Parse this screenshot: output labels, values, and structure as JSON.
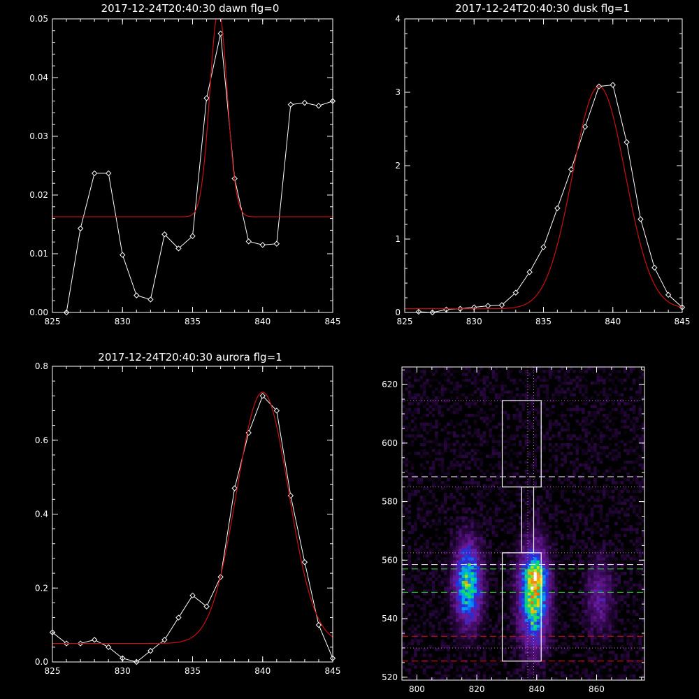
{
  "chart_data": [
    {
      "type": "line",
      "title": "2017-12-24T20:40:30 dawn flg=0",
      "xlim": [
        825,
        845
      ],
      "ylim": [
        0,
        0.05
      ],
      "xticks": [
        825,
        830,
        835,
        840,
        845
      ],
      "xtick_labels": [
        "825",
        "830",
        "835",
        "840",
        "845"
      ],
      "yticks": [
        0,
        0.01,
        0.02,
        0.03,
        0.04,
        0.05
      ],
      "ytick_labels": [
        "0.00",
        "0.01",
        "0.02",
        "0.03",
        "0.04",
        "0.05"
      ],
      "series": [
        {
          "kind": "data",
          "color": "#ffffff",
          "marker": "diamond",
          "x": [
            826,
            827,
            828,
            829,
            830,
            831,
            832,
            833,
            834,
            835,
            836,
            837,
            838,
            839,
            840,
            841,
            842,
            843,
            844,
            845
          ],
          "y": [
            0.0,
            0.0143,
            0.0237,
            0.0237,
            0.0098,
            0.0029,
            0.0022,
            0.0133,
            0.0109,
            0.013,
            0.0365,
            0.0475,
            0.0228,
            0.0121,
            0.0115,
            0.0117,
            0.0354,
            0.0357,
            0.0352,
            0.036
          ]
        },
        {
          "kind": "gaussian_fit",
          "color": "#cc1010",
          "baseline": 0.0163,
          "amplitude": 0.0352,
          "center": 836.85,
          "sigma": 0.62
        }
      ]
    },
    {
      "type": "line",
      "title": "2017-12-24T20:40:30 dusk flg=1",
      "xlim": [
        825,
        845
      ],
      "ylim": [
        0,
        4
      ],
      "xticks": [
        825,
        830,
        835,
        840,
        845
      ],
      "xtick_labels": [
        "825",
        "830",
        "835",
        "840",
        "845"
      ],
      "yticks": [
        0,
        1,
        2,
        3,
        4
      ],
      "ytick_labels": [
        "0",
        "1",
        "2",
        "3",
        "4"
      ],
      "series": [
        {
          "kind": "data",
          "color": "#ffffff",
          "marker": "diamond",
          "x": [
            826,
            827,
            828,
            829,
            830,
            831,
            832,
            833,
            834,
            835,
            836,
            837,
            838,
            839,
            840,
            841,
            842,
            843,
            844,
            845
          ],
          "y": [
            0.01,
            0.0,
            0.04,
            0.05,
            0.07,
            0.09,
            0.1,
            0.27,
            0.55,
            0.89,
            1.42,
            1.95,
            2.53,
            3.08,
            3.1,
            2.32,
            1.27,
            0.61,
            0.24,
            0.07
          ]
        },
        {
          "kind": "gaussian_fit",
          "color": "#cc1010",
          "baseline": 0.05,
          "amplitude": 3.03,
          "center": 839.0,
          "sigma": 1.9
        }
      ]
    },
    {
      "type": "line",
      "title": "2017-12-24T20:40:30 aurora flg=1",
      "xlim": [
        825,
        845
      ],
      "ylim": [
        0,
        0.8
      ],
      "xticks": [
        825,
        830,
        835,
        840,
        845
      ],
      "xtick_labels": [
        "825",
        "830",
        "835",
        "840",
        "845"
      ],
      "yticks": [
        0,
        0.2,
        0.4,
        0.6,
        0.8
      ],
      "ytick_labels": [
        "0.0",
        "0.2",
        "0.4",
        "0.6",
        "0.8"
      ],
      "series": [
        {
          "kind": "data",
          "color": "#ffffff",
          "marker": "diamond",
          "x": [
            825,
            826,
            827,
            828,
            829,
            830,
            831,
            832,
            833,
            834,
            835,
            836,
            837,
            838,
            839,
            840,
            841,
            842,
            843,
            844,
            845
          ],
          "y": [
            0.08,
            0.05,
            0.05,
            0.06,
            0.04,
            0.01,
            0.0,
            0.03,
            0.06,
            0.12,
            0.18,
            0.15,
            0.23,
            0.47,
            0.62,
            0.72,
            0.68,
            0.45,
            0.27,
            0.1,
            0.01
          ]
        },
        {
          "kind": "gaussian_fit",
          "color": "#cc1010",
          "baseline": 0.05,
          "amplitude": 0.68,
          "center": 840.0,
          "sigma": 1.85
        }
      ]
    },
    {
      "type": "heatmap",
      "xlim": [
        795,
        876
      ],
      "ylim": [
        519,
        626
      ],
      "xticks": [
        800,
        820,
        840,
        860
      ],
      "xtick_labels": [
        "800",
        "820",
        "840",
        "860"
      ],
      "yticks": [
        520,
        540,
        560,
        580,
        600,
        620
      ],
      "ytick_labels": [
        "520",
        "540",
        "560",
        "580",
        "600",
        "620"
      ],
      "colormap": [
        "#000000",
        "#3a0a5a",
        "#6a1a9a",
        "#2030e0",
        "#00a0ff",
        "#00e070",
        "#e0e000",
        "#ff6000",
        "#ffffff"
      ],
      "blobs": [
        {
          "x": 817,
          "y": 552,
          "sx": 3.0,
          "sy": 9.0,
          "amp": 0.62
        },
        {
          "x": 839,
          "y": 548,
          "sx": 3.2,
          "sy": 11.0,
          "amp": 0.72
        },
        {
          "x": 840,
          "y": 554,
          "sx": 2.0,
          "sy": 3.0,
          "amp": 0.35
        },
        {
          "x": 861,
          "y": 548,
          "sx": 3.0,
          "sy": 8.0,
          "amp": 0.22
        }
      ],
      "white_boxes": [
        {
          "x0": 828.5,
          "x1": 841.5,
          "y0": 525.5,
          "y1": 562.5
        },
        {
          "x0": 828.5,
          "x1": 841.5,
          "y0": 585,
          "y1": 614.5
        }
      ],
      "connector": {
        "x0": 835,
        "x1": 839,
        "y0": 562.5,
        "y1": 585
      },
      "vertical_lines": [
        {
          "x": 837.0
        },
        {
          "x": 839.0
        }
      ],
      "horizontal_lines": [
        {
          "y": 614.5,
          "color": "#c080c0",
          "style": "dotted"
        },
        {
          "y": 588.5,
          "color": "#ffffff",
          "style": "dashed"
        },
        {
          "y": 585.0,
          "color": "#c080c0",
          "style": "dotted"
        },
        {
          "y": 562.5,
          "color": "#c080c0",
          "style": "dotted"
        },
        {
          "y": 558.5,
          "color": "#ffffff",
          "style": "dashed"
        },
        {
          "y": 557.0,
          "color": "#20e020",
          "style": "dashed"
        },
        {
          "y": 549.0,
          "color": "#20e020",
          "style": "dashed"
        },
        {
          "y": 534.0,
          "color": "#e01010",
          "style": "dashed"
        },
        {
          "y": 530.0,
          "color": "#c080c0",
          "style": "dotted"
        },
        {
          "y": 525.5,
          "color": "#e01010",
          "style": "dashed"
        }
      ]
    }
  ]
}
